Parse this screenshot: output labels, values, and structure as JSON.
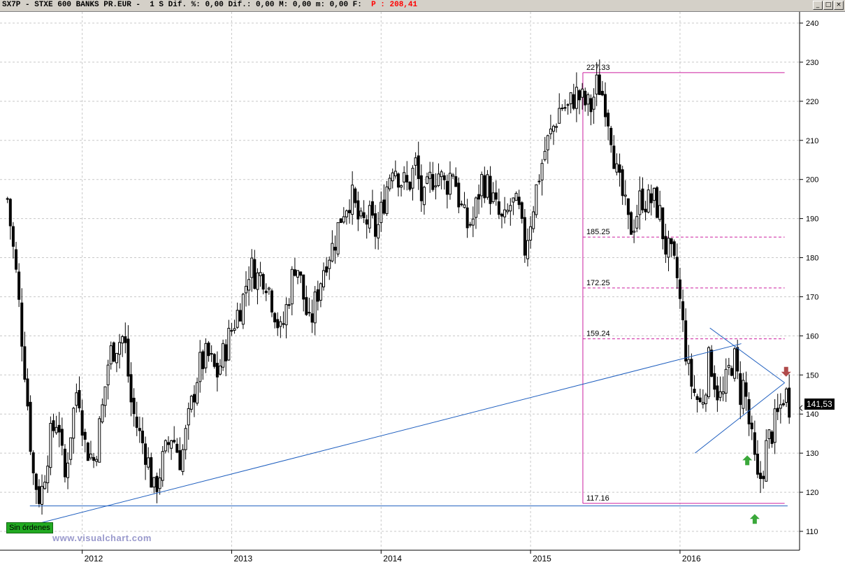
{
  "window": {
    "title_main": "SX7P - STXE 600 BANKS PR.EUR -  1 S Dif. %: 0,00 Dif.: 0,00 M: 0,00 m: 0,00 F: ",
    "title_price": " P : 208,41 ",
    "buttons": [
      "_",
      "□",
      "×"
    ]
  },
  "status_badge": "Sin órdenes",
  "watermark": "www.visualchart.com",
  "current_price_label": "141,53",
  "colors": {
    "candle": "#000000",
    "trendline": "#1f5fbf",
    "fib": "#cc1f9f",
    "up_arrow": "#3aa83a",
    "down_arrow": "#b04a4a",
    "grid": "#c8c8c8"
  },
  "chart_data": {
    "type": "candlestick",
    "title": "SX7P - STXE 600 BANKS PR.EUR",
    "x_ticks": [
      "2012",
      "2013",
      "2014",
      "2015",
      "2016"
    ],
    "y_ticks": [
      110,
      120,
      130,
      140,
      150,
      160,
      170,
      180,
      190,
      200,
      210,
      220,
      230,
      240
    ],
    "ylim": [
      104,
      246
    ],
    "grid": true,
    "fib_levels": [
      {
        "label": "227.33",
        "value": 227.33
      },
      {
        "label": "185.25",
        "value": 185.25
      },
      {
        "label": "172.25",
        "value": 172.25
      },
      {
        "label": "159.24",
        "value": 159.24
      },
      {
        "label": "117.16",
        "value": 117.16
      }
    ],
    "last_value": 141.53,
    "price_path": [
      [
        2011.5,
        195
      ],
      [
        2011.56,
        175
      ],
      [
        2011.62,
        150
      ],
      [
        2011.67,
        125
      ],
      [
        2011.72,
        118
      ],
      [
        2011.78,
        133
      ],
      [
        2011.84,
        140
      ],
      [
        2011.88,
        122
      ],
      [
        2011.92,
        135
      ],
      [
        2011.97,
        148
      ],
      [
        2012.02,
        132
      ],
      [
        2012.08,
        128
      ],
      [
        2012.13,
        140
      ],
      [
        2012.18,
        155
      ],
      [
        2012.23,
        158
      ],
      [
        2012.28,
        160
      ],
      [
        2012.33,
        142
      ],
      [
        2012.38,
        135
      ],
      [
        2012.43,
        130
      ],
      [
        2012.48,
        120
      ],
      [
        2012.54,
        128
      ],
      [
        2012.6,
        135
      ],
      [
        2012.66,
        128
      ],
      [
        2012.72,
        140
      ],
      [
        2012.78,
        152
      ],
      [
        2012.84,
        155
      ],
      [
        2012.9,
        150
      ],
      [
        2012.96,
        157
      ],
      [
        2013.02,
        164
      ],
      [
        2013.08,
        170
      ],
      [
        2013.12,
        178
      ],
      [
        2013.17,
        175
      ],
      [
        2013.22,
        176
      ],
      [
        2013.28,
        168
      ],
      [
        2013.33,
        160
      ],
      [
        2013.38,
        170
      ],
      [
        2013.43,
        180
      ],
      [
        2013.48,
        170
      ],
      [
        2013.52,
        162
      ],
      [
        2013.58,
        172
      ],
      [
        2013.63,
        180
      ],
      [
        2013.68,
        183
      ],
      [
        2013.74,
        192
      ],
      [
        2013.8,
        196
      ],
      [
        2013.86,
        188
      ],
      [
        2013.92,
        190
      ],
      [
        2013.97,
        186
      ],
      [
        2014.03,
        197
      ],
      [
        2014.08,
        205
      ],
      [
        2014.13,
        200
      ],
      [
        2014.18,
        198
      ],
      [
        2014.23,
        204
      ],
      [
        2014.28,
        193
      ],
      [
        2014.33,
        200
      ],
      [
        2014.38,
        202
      ],
      [
        2014.43,
        198
      ],
      [
        2014.48,
        203
      ],
      [
        2014.52,
        195
      ],
      [
        2014.57,
        188
      ],
      [
        2014.62,
        190
      ],
      [
        2014.67,
        200
      ],
      [
        2014.72,
        198
      ],
      [
        2014.77,
        192
      ],
      [
        2014.82,
        188
      ],
      [
        2014.87,
        194
      ],
      [
        2014.92,
        192
      ],
      [
        2014.96,
        182
      ],
      [
        2015.0,
        190
      ],
      [
        2015.05,
        200
      ],
      [
        2015.1,
        208
      ],
      [
        2015.15,
        213
      ],
      [
        2015.2,
        219
      ],
      [
        2015.25,
        218
      ],
      [
        2015.3,
        222
      ],
      [
        2015.35,
        220
      ],
      [
        2015.4,
        218
      ],
      [
        2015.45,
        225
      ],
      [
        2015.5,
        220
      ],
      [
        2015.54,
        212
      ],
      [
        2015.58,
        200
      ],
      [
        2015.62,
        195
      ],
      [
        2015.66,
        187
      ],
      [
        2015.7,
        190
      ],
      [
        2015.74,
        196
      ],
      [
        2015.78,
        194
      ],
      [
        2015.82,
        195
      ],
      [
        2015.86,
        192
      ],
      [
        2015.9,
        183
      ],
      [
        2015.94,
        180
      ],
      [
        2015.98,
        175
      ],
      [
        2016.02,
        162
      ],
      [
        2016.06,
        150
      ],
      [
        2016.1,
        145
      ],
      [
        2016.14,
        142
      ],
      [
        2016.17,
        148
      ],
      [
        2016.2,
        155
      ],
      [
        2016.24,
        147
      ],
      [
        2016.28,
        143
      ],
      [
        2016.32,
        150
      ],
      [
        2016.36,
        155
      ],
      [
        2016.4,
        145
      ],
      [
        2016.43,
        148
      ],
      [
        2016.46,
        138
      ],
      [
        2016.49,
        130
      ],
      [
        2016.52,
        122
      ],
      [
        2016.55,
        125
      ],
      [
        2016.58,
        132
      ],
      [
        2016.62,
        136
      ],
      [
        2016.66,
        140
      ],
      [
        2016.7,
        146
      ],
      [
        2016.72,
        144
      ],
      [
        2016.74,
        141.53
      ]
    ],
    "trendlines": [
      {
        "from": [
          2011.5,
          110
        ],
        "to": [
          2016.41,
          158
        ]
      },
      {
        "from": [
          2011.65,
          116.5
        ],
        "to": [
          2016.72,
          116.5
        ]
      },
      {
        "from": [
          2016.1,
          130
        ],
        "to": [
          2016.7,
          148
        ]
      },
      {
        "from": [
          2016.2,
          162
        ],
        "to": [
          2016.7,
          148
        ]
      }
    ],
    "fib_box": {
      "x_from": 2015.35,
      "x_to": 2016.7
    },
    "arrows": [
      {
        "dir": "up",
        "x": 2016.45,
        "y": 128
      },
      {
        "dir": "up",
        "x": 2016.5,
        "y": 113
      },
      {
        "dir": "down",
        "x": 2016.71,
        "y": 151
      }
    ]
  }
}
